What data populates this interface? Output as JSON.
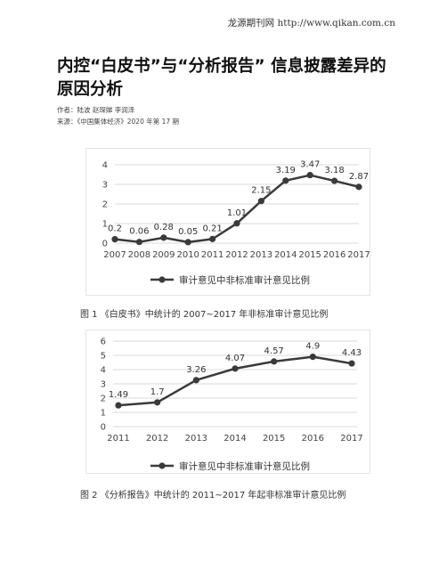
{
  "header": {
    "source_text": "龙源期刊网 http://www.qikan.com.cn"
  },
  "article": {
    "title": "内控“白皮书”与“分析报告” 信息披露差异的原因分析",
    "authors": "作者：陆波    赵琛娣    李润泽",
    "source": "来源：《中国集体经济》2020 年第 17 期"
  },
  "figures": [
    {
      "caption": "图 1  《白皮书》中统计的 2007~2017 年非标准审计意见比例",
      "legend": "审计意见中非标准审计意见比例"
    },
    {
      "caption": "图 2  《分析报告》中统计的 2011~2017 年起非标准审计意见比例",
      "legend": "审计意见中非标准审计意见比例"
    }
  ],
  "chart_data": [
    {
      "type": "line",
      "categories": [
        "2007",
        "2008",
        "2009",
        "2010",
        "2011",
        "2012",
        "2013",
        "2014",
        "2015",
        "2016",
        "2017"
      ],
      "series": [
        {
          "name": "审计意见中非标准审计意见比例",
          "values": [
            0.2,
            0.06,
            0.28,
            0.05,
            0.21,
            1.01,
            2.15,
            3.19,
            3.47,
            3.18,
            2.87
          ]
        }
      ],
      "data_labels": [
        "0.2",
        "0.06",
        "0.28",
        "0.05",
        "0.21",
        "1.01",
        "2.15",
        "3.19",
        "3.47",
        "3.18",
        "2.87"
      ],
      "yticks": [
        "0",
        "1",
        "2",
        "3",
        "4"
      ],
      "ylim": [
        0,
        4
      ],
      "grid": true,
      "legend_position": "bottom",
      "color": "#3a3a3a"
    },
    {
      "type": "line",
      "categories": [
        "2011",
        "2012",
        "2013",
        "2014",
        "2015",
        "2016",
        "2017"
      ],
      "series": [
        {
          "name": "审计意见中非标准审计意见比例",
          "values": [
            1.49,
            1.7,
            3.26,
            4.07,
            4.57,
            4.9,
            4.43
          ]
        }
      ],
      "data_labels": [
        "1.49",
        "1.7",
        "3.26",
        "4.07",
        "4.57",
        "4.9",
        "4.43"
      ],
      "yticks": [
        "0",
        "1",
        "2",
        "3",
        "4",
        "5",
        "6"
      ],
      "ylim": [
        0,
        6
      ],
      "grid": true,
      "legend_position": "bottom",
      "color": "#3a3a3a"
    }
  ]
}
